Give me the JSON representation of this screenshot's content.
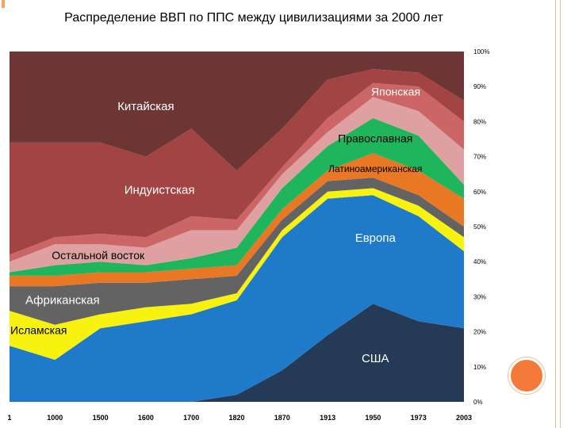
{
  "slide": {
    "title": "Распределение ВВП по ППС между цивилизациями за 2000 лет"
  },
  "chart_data": {
    "type": "area",
    "stacked": true,
    "percent": true,
    "title": "Распределение ВВП по ППС между цивилизациями за 2000 лет",
    "x": [
      "1",
      "1000",
      "1500",
      "1600",
      "1700",
      "1820",
      "1870",
      "1913",
      "1950",
      "1973",
      "2003"
    ],
    "y_ticks": [
      "0%",
      "10%",
      "20%",
      "30%",
      "40%",
      "50%",
      "60%",
      "70%",
      "80%",
      "90%",
      "100%"
    ],
    "ylim": [
      0,
      100
    ],
    "series": [
      {
        "name": "США",
        "color": "#253a57",
        "values": [
          0,
          0,
          0,
          0,
          0,
          2,
          9,
          19,
          28,
          23,
          21
        ]
      },
      {
        "name": "Европа",
        "color": "#1f7bc9",
        "values": [
          16,
          12,
          21,
          23,
          25,
          27,
          38,
          39,
          31,
          30,
          22
        ]
      },
      {
        "name": "Исламская",
        "color": "#f7f20f",
        "values": [
          10,
          10,
          4,
          4,
          3,
          2,
          2,
          2,
          2,
          3,
          4
        ]
      },
      {
        "name": "Африканская",
        "color": "#636363",
        "values": [
          7,
          11,
          9,
          7,
          7,
          5,
          3,
          3,
          3,
          3,
          3
        ]
      },
      {
        "name": "Латиноамериканская",
        "color": "#e87824",
        "values": [
          3,
          3,
          3,
          3,
          3,
          3,
          3,
          3,
          7,
          7,
          8
        ]
      },
      {
        "name": "Православная",
        "color": "#1fb55c",
        "values": [
          1,
          3,
          3,
          2,
          3,
          5,
          6,
          7,
          10,
          10,
          4
        ]
      },
      {
        "name": "Остальной восток",
        "color": "#dea0a0",
        "values": [
          3,
          6,
          5,
          5,
          8,
          5,
          4,
          4,
          6,
          7,
          10
        ]
      },
      {
        "name": "Японская",
        "color": "#cc6666",
        "values": [
          2,
          2,
          3,
          3,
          4,
          3,
          2,
          4,
          4,
          7,
          8
        ]
      },
      {
        "name": "Индуистская",
        "color": "#a24444",
        "values": [
          32,
          27,
          26,
          23,
          25,
          14,
          11,
          11,
          4,
          4,
          6
        ]
      },
      {
        "name": "Китайская",
        "color": "#6e3535",
        "values": [
          26,
          26,
          26,
          30,
          22,
          34,
          22,
          8,
          5,
          6,
          14
        ]
      }
    ]
  }
}
